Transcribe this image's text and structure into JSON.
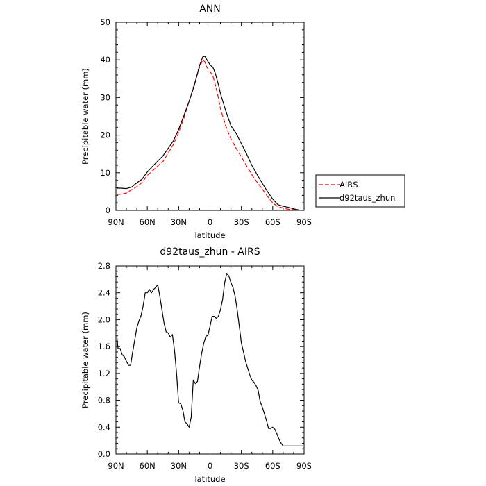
{
  "chart_data": [
    {
      "type": "line",
      "title": "ANN",
      "xlabel": "latitude",
      "ylabel": "Precipitable water (mm)",
      "ylim": [
        0,
        50
      ],
      "xlim": [
        -90,
        90
      ],
      "x_direction": "90N on left to 90S on right",
      "x_ticks": [
        -90,
        -60,
        -30,
        0,
        30,
        60,
        90
      ],
      "x_tick_labels": [
        "90N",
        "60N",
        "30N",
        "0",
        "30S",
        "60S",
        "90S"
      ],
      "y_ticks": [
        0,
        10,
        20,
        30,
        40,
        50
      ],
      "y_tick_labels": [
        "0",
        "10",
        "20",
        "30",
        "40",
        "50"
      ],
      "grid": false,
      "legend_placement": "right",
      "series": [
        {
          "name": "AIRS",
          "color": "#ff0000",
          "style": "dashed",
          "x": [
            -89,
            -85,
            -80,
            -75,
            -70,
            -65,
            -60,
            -55,
            -50,
            -45,
            -40,
            -35,
            -30,
            -25,
            -20,
            -15,
            -10,
            -7,
            -5,
            -3,
            0,
            3,
            5,
            8,
            10,
            15,
            20,
            25,
            30,
            35,
            40,
            45,
            50,
            55,
            60,
            65,
            70,
            75,
            80,
            85,
            89
          ],
          "y": [
            4.2,
            4.3,
            4.6,
            5.5,
            6.3,
            7.4,
            9.3,
            10.5,
            11.8,
            13.0,
            15.3,
            17.5,
            20.7,
            24.5,
            29.0,
            33.5,
            38.0,
            40.0,
            39.5,
            38.0,
            37.0,
            35.5,
            33.5,
            30.0,
            27.0,
            22.5,
            19.0,
            16.5,
            14.2,
            11.8,
            9.5,
            7.5,
            5.7,
            3.7,
            2.0,
            1.0,
            0.6,
            0.3,
            0.2,
            0.1,
            0.0
          ]
        },
        {
          "name": "d92taus_zhun",
          "color": "#000000",
          "style": "solid",
          "x": [
            -89,
            -85,
            -80,
            -75,
            -70,
            -65,
            -60,
            -55,
            -50,
            -45,
            -40,
            -35,
            -30,
            -25,
            -20,
            -15,
            -10,
            -7,
            -5,
            -3,
            0,
            3,
            5,
            8,
            10,
            15,
            20,
            25,
            30,
            35,
            40,
            45,
            50,
            55,
            60,
            65,
            70,
            75,
            80,
            85,
            89
          ],
          "y": [
            5.9,
            5.9,
            5.8,
            6.2,
            7.3,
            8.3,
            10.2,
            11.7,
            13.1,
            14.5,
            16.5,
            18.5,
            21.5,
            25.2,
            29.0,
            33.2,
            38.5,
            40.8,
            41.0,
            40.0,
            38.7,
            37.9,
            36.5,
            33.5,
            31.0,
            26.5,
            22.5,
            20.5,
            17.7,
            15.0,
            12.0,
            9.5,
            7.2,
            5.0,
            3.0,
            1.5,
            1.1,
            0.8,
            0.4,
            0.1,
            0.0
          ]
        }
      ]
    },
    {
      "type": "line",
      "title": "d92taus_zhun - AIRS",
      "xlabel": "latitude",
      "ylabel": "Precipitable water (mm)",
      "ylim": [
        0,
        2.8
      ],
      "xlim": [
        -90,
        90
      ],
      "x_direction": "90N on left to 90S on right",
      "x_ticks": [
        -90,
        -60,
        -30,
        0,
        30,
        60,
        90
      ],
      "x_tick_labels": [
        "90N",
        "60N",
        "30N",
        "0",
        "30S",
        "60S",
        "90S"
      ],
      "y_ticks": [
        0,
        0.4,
        0.8,
        1.2,
        1.6,
        2.0,
        2.4,
        2.8
      ],
      "y_tick_labels": [
        "0.0",
        "0.4",
        "0.8",
        "1.2",
        "1.6",
        "2.0",
        "2.4",
        "2.8"
      ],
      "grid": false,
      "series": [
        {
          "color": "#000000",
          "style": "solid",
          "x": [
            -89,
            -88,
            -86,
            -84,
            -82,
            -80,
            -78,
            -76,
            -74,
            -72,
            -70,
            -68,
            -66,
            -64,
            -62,
            -60,
            -58,
            -56,
            -54,
            -52,
            -50,
            -48,
            -46,
            -44,
            -42,
            -40,
            -38,
            -36,
            -34,
            -32,
            -30,
            -28,
            -26,
            -24,
            -22,
            -20,
            -18,
            -16,
            -14,
            -12,
            -10,
            -8,
            -6,
            -4,
            -2,
            0,
            2,
            4,
            6,
            8,
            10,
            12,
            14,
            16,
            18,
            20,
            22,
            24,
            26,
            28,
            30,
            32,
            34,
            36,
            38,
            40,
            42,
            44,
            46,
            48,
            50,
            52,
            54,
            56,
            58,
            60,
            62,
            64,
            66,
            68,
            70,
            72,
            74,
            76,
            78,
            80,
            82,
            84,
            86,
            88,
            89
          ],
          "y": [
            1.73,
            1.57,
            1.57,
            1.48,
            1.45,
            1.38,
            1.32,
            1.32,
            1.52,
            1.7,
            1.88,
            1.98,
            2.06,
            2.2,
            2.4,
            2.4,
            2.45,
            2.4,
            2.45,
            2.48,
            2.52,
            2.35,
            2.15,
            1.95,
            1.82,
            1.8,
            1.74,
            1.78,
            1.55,
            1.2,
            0.76,
            0.75,
            0.65,
            0.48,
            0.45,
            0.4,
            0.55,
            1.1,
            1.05,
            1.08,
            1.3,
            1.5,
            1.65,
            1.75,
            1.77,
            1.9,
            2.05,
            2.05,
            2.02,
            2.05,
            2.15,
            2.3,
            2.55,
            2.69,
            2.65,
            2.55,
            2.48,
            2.35,
            2.15,
            1.9,
            1.65,
            1.52,
            1.38,
            1.28,
            1.18,
            1.1,
            1.07,
            1.02,
            0.95,
            0.78,
            0.7,
            0.6,
            0.5,
            0.38,
            0.38,
            0.4,
            0.37,
            0.3,
            0.22,
            0.16,
            0.12,
            0.12,
            0.12,
            0.12,
            0.12,
            0.12,
            0.12,
            0.12,
            0.12,
            0.12,
            0.12
          ]
        }
      ]
    }
  ]
}
